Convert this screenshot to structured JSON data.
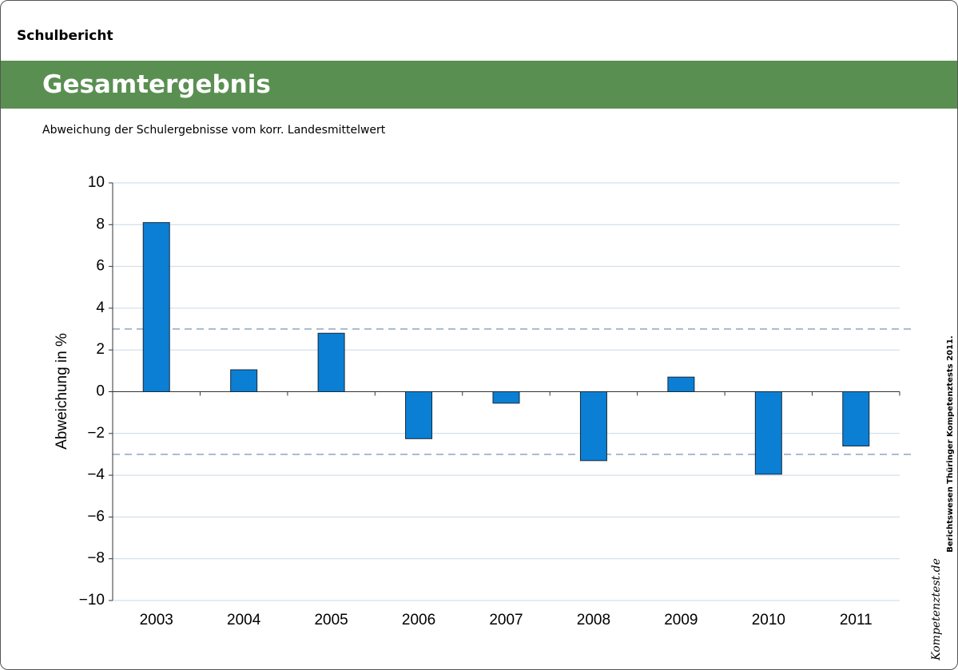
{
  "header": {
    "section": "Schulbericht",
    "title": "Gesamtergebnis"
  },
  "chart_data": {
    "type": "bar",
    "subtitle": "Abweichung der Schulergebnisse vom korr. Landesmittelwert",
    "y_label": "Abweichung in %",
    "categories": [
      "2003",
      "2004",
      "2005",
      "2006",
      "2007",
      "2008",
      "2009",
      "2010",
      "2011"
    ],
    "values": [
      8.1,
      1.05,
      2.8,
      -2.25,
      -0.55,
      -3.3,
      0.7,
      -3.95,
      -2.6
    ],
    "color": "#0a7fd4",
    "ylim": [
      -10,
      10
    ],
    "yticks": [
      {
        "value": -10,
        "label": "−10"
      },
      {
        "value": -8,
        "label": "−8"
      },
      {
        "value": -6,
        "label": "−6"
      },
      {
        "value": -4,
        "label": "−4"
      },
      {
        "value": -2,
        "label": "−2"
      },
      0,
      2,
      4,
      6,
      8,
      10
    ],
    "reference_lines": [
      3,
      -3
    ],
    "grid": true
  },
  "footer": {
    "credit": "Berichtswesen Thüringer Kompetenztests 2011.",
    "logo": "Kompetenztest.de"
  }
}
